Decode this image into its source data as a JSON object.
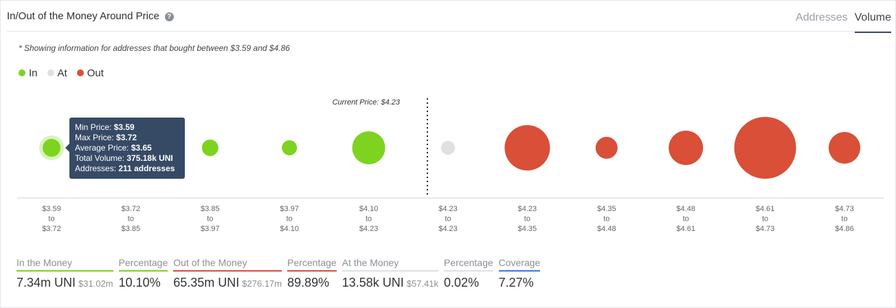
{
  "header": {
    "title": "In/Out of the Money Around Price",
    "help_icon": "?",
    "tabs": [
      {
        "label": "Addresses",
        "active": false
      },
      {
        "label": "Volume",
        "active": true
      }
    ]
  },
  "note": "* Showing information for addresses that bought between $3.59 and $4.86",
  "legend": [
    {
      "label": "In",
      "color": "#7ed321"
    },
    {
      "label": "At",
      "color": "#e0e0e0"
    },
    {
      "label": "Out",
      "color": "#d94f38"
    }
  ],
  "chart_data": {
    "type": "scatter",
    "title": "In/Out of the Money Around Price",
    "current_price_label": "Current Price: $4.23",
    "current_price": 4.23,
    "categories": [
      {
        "from": "$3.59",
        "to": "$3.72",
        "status": "In",
        "volume_k_uni": 375.18
      },
      {
        "from": "$3.72",
        "to": "$3.85",
        "status": "In",
        "volume_k_uni": 375
      },
      {
        "from": "$3.85",
        "to": "$3.97",
        "status": "In",
        "volume_k_uni": 320
      },
      {
        "from": "$3.97",
        "to": "$4.10",
        "status": "In",
        "volume_k_uni": 269
      },
      {
        "from": "$4.10",
        "to": "$4.23",
        "status": "In",
        "volume_k_uni": 1279
      },
      {
        "from": "$4.23",
        "to": "$4.23",
        "status": "At",
        "volume_k_uni": 222
      },
      {
        "from": "$4.23",
        "to": "$4.35",
        "status": "Out",
        "volume_k_uni": 2418
      },
      {
        "from": "$4.35",
        "to": "$4.48",
        "status": "Out",
        "volume_k_uni": 568
      },
      {
        "from": "$4.48",
        "to": "$4.61",
        "status": "Out",
        "volume_k_uni": 1388
      },
      {
        "from": "$4.61",
        "to": "$4.73",
        "status": "Out",
        "volume_k_uni": 4495
      },
      {
        "from": "$4.73",
        "to": "$4.86",
        "status": "Out",
        "volume_k_uni": 1174
      }
    ],
    "to_word": "to"
  },
  "tooltip": {
    "rows": [
      {
        "label": "Min Price: ",
        "value": "$3.59"
      },
      {
        "label": "Max Price: ",
        "value": "$3.72"
      },
      {
        "label": "Average Price: ",
        "value": "$3.65"
      },
      {
        "label": "Total Volume: ",
        "value": "375.18k UNI"
      },
      {
        "label": "Addresses: ",
        "value": "211 addresses"
      }
    ]
  },
  "stats": [
    {
      "label": "In the Money",
      "value": "7.34m UNI",
      "sub": "$31.02m",
      "color": "#7ed321"
    },
    {
      "label": "Percentage",
      "value": "10.10%",
      "color": "#7ed321"
    },
    {
      "label": "Out of the Money",
      "value": "65.35m UNI",
      "sub": "$276.17m",
      "color": "#d94f38"
    },
    {
      "label": "Percentage",
      "value": "89.89%",
      "color": "#d94f38"
    },
    {
      "label": "At the Money",
      "value": "13.58k UNI",
      "sub": "$57.41k",
      "color": "#e0e0e0"
    },
    {
      "label": "Percentage",
      "value": "0.02%",
      "color": "#e0e0e0"
    },
    {
      "label": "Coverage",
      "value": "7.27%",
      "color": "#3a7be0"
    }
  ]
}
